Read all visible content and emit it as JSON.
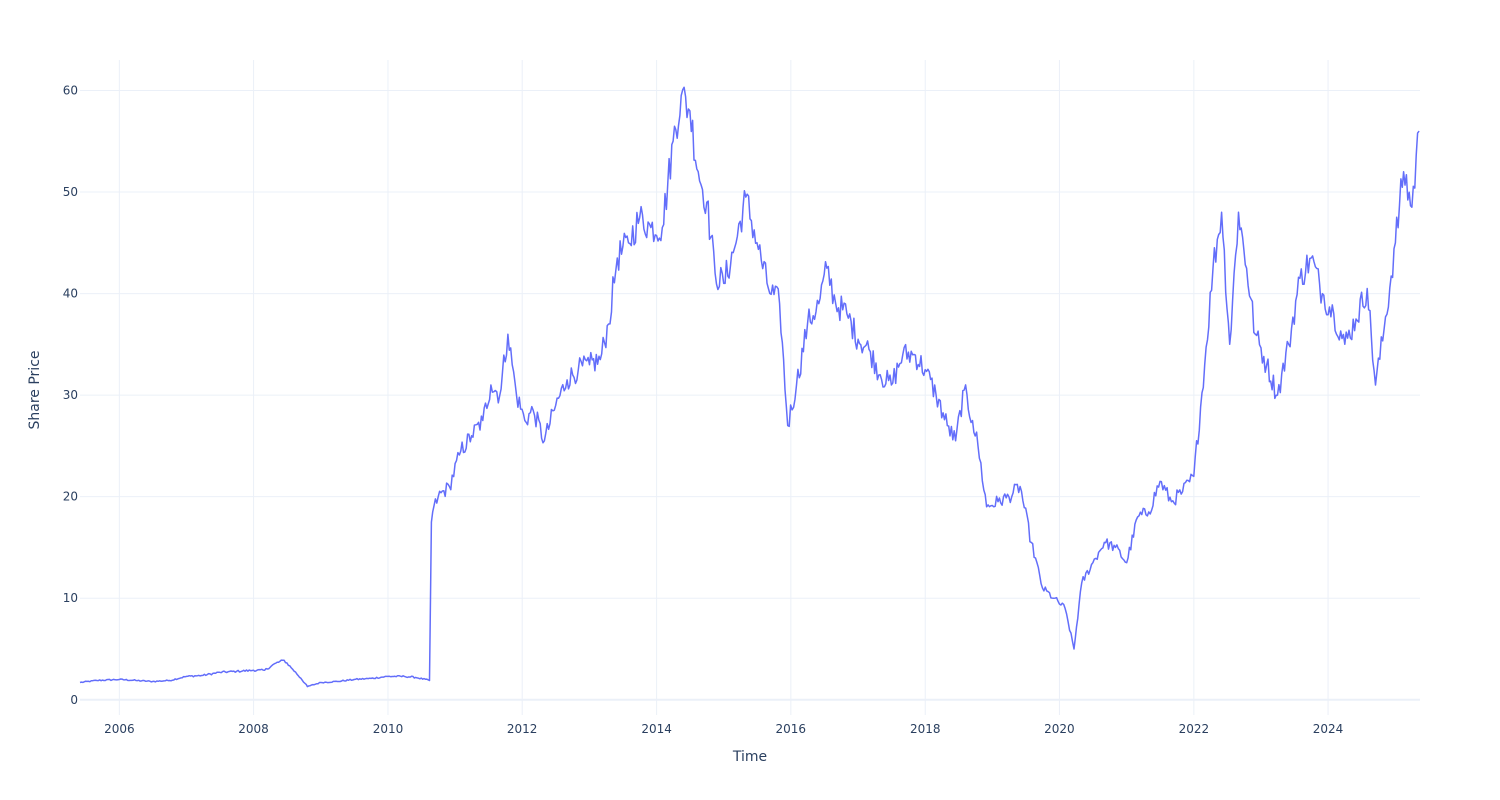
{
  "chart_data": {
    "type": "line",
    "title": "",
    "xlabel": "Time",
    "ylabel": "Share Price",
    "xlim": [
      "2005-06-01",
      "2025-05-15"
    ],
    "ylim": [
      -1.5,
      63
    ],
    "grid": true,
    "x_tick_labels": [
      "2006",
      "2008",
      "2010",
      "2012",
      "2014",
      "2016",
      "2018",
      "2020",
      "2022",
      "2024"
    ],
    "y_tick_labels": [
      "0",
      "10",
      "20",
      "30",
      "40",
      "50",
      "60"
    ],
    "y_ticks": [
      0,
      10,
      20,
      30,
      40,
      50,
      60
    ],
    "line_color": "#636efa",
    "grid_color": "#ebf0f8",
    "series": [
      {
        "x": [
          "2005-06-01",
          "2005-09-01",
          "2006-01-01",
          "2006-04-01",
          "2006-07-01",
          "2006-10-01",
          "2007-01-01",
          "2007-04-01",
          "2007-07-01",
          "2007-10-01",
          "2008-01-01",
          "2008-03-01",
          "2008-05-01",
          "2008-06-15",
          "2008-08-01",
          "2008-09-15",
          "2008-10-20",
          "2009-01-01",
          "2009-04-01",
          "2009-07-01",
          "2009-10-01",
          "2010-01-01",
          "2010-04-01",
          "2010-06-01",
          "2010-08-15",
          "2010-08-25",
          "2010-09-01",
          "2010-10-01",
          "2010-12-01",
          "2011-02-01",
          "2011-04-01",
          "2011-06-01",
          "2011-07-15",
          "2011-09-01",
          "2011-10-15",
          "2011-12-01",
          "2012-01-15",
          "2012-03-01",
          "2012-05-01",
          "2012-07-01",
          "2012-09-01",
          "2012-11-01",
          "2013-01-01",
          "2013-03-01",
          "2013-04-15",
          "2013-06-01",
          "2013-08-01",
          "2013-10-01",
          "2013-12-01",
          "2014-02-01",
          "2014-04-01",
          "2014-05-15",
          "2014-07-01",
          "2014-08-15",
          "2014-10-01",
          "2014-11-15",
          "2015-01-01",
          "2015-03-01",
          "2015-05-01",
          "2015-07-01",
          "2015-09-01",
          "2015-11-01",
          "2015-12-15",
          "2016-02-01",
          "2016-04-01",
          "2016-06-01",
          "2016-07-15",
          "2016-09-01",
          "2016-11-01",
          "2017-01-01",
          "2017-03-01",
          "2017-05-01",
          "2017-07-01",
          "2017-09-01",
          "2017-11-01",
          "2018-01-01",
          "2018-03-01",
          "2018-05-01",
          "2018-06-15",
          "2018-08-01",
          "2018-09-15",
          "2018-10-15",
          "2018-12-01",
          "2019-02-01",
          "2019-04-01",
          "2019-06-01",
          "2019-08-01",
          "2019-10-01",
          "2019-12-01",
          "2020-02-01",
          "2020-03-20",
          "2020-05-01",
          "2020-07-01",
          "2020-09-01",
          "2020-11-01",
          "2021-01-01",
          "2021-03-01",
          "2021-05-01",
          "2021-07-01",
          "2021-09-01",
          "2021-11-01",
          "2022-01-01",
          "2022-03-01",
          "2022-04-15",
          "2022-06-01",
          "2022-07-15",
          "2022-09-01",
          "2022-10-15",
          "2022-12-01",
          "2023-02-01",
          "2023-04-01",
          "2023-06-01",
          "2023-08-01",
          "2023-10-01",
          "2023-12-01",
          "2024-02-01",
          "2024-04-01",
          "2024-06-01",
          "2024-08-01",
          "2024-09-15",
          "2024-11-01",
          "2025-01-01",
          "2025-02-15",
          "2025-04-01",
          "2025-05-10"
        ],
        "y": [
          1.7,
          1.9,
          2.0,
          1.9,
          1.8,
          1.9,
          2.3,
          2.4,
          2.7,
          2.8,
          2.9,
          2.9,
          3.6,
          3.9,
          3.0,
          2.1,
          1.3,
          1.7,
          1.8,
          2.0,
          2.1,
          2.3,
          2.3,
          2.2,
          1.9,
          17.5,
          18.5,
          20.0,
          21.0,
          24.5,
          26.0,
          27.5,
          31.0,
          30.0,
          36.0,
          30.0,
          27.5,
          28.5,
          25.5,
          29.0,
          31.5,
          32.5,
          33.0,
          33.5,
          37.0,
          43.5,
          45.0,
          47.5,
          46.5,
          46.5,
          55.0,
          59.5,
          58.0,
          52.0,
          49.0,
          42.0,
          41.0,
          44.5,
          49.5,
          45.0,
          40.5,
          39.0,
          27.0,
          31.0,
          37.0,
          39.0,
          42.5,
          39.0,
          38.0,
          35.5,
          34.5,
          32.0,
          31.0,
          34.0,
          34.0,
          32.5,
          30.0,
          27.0,
          25.5,
          30.5,
          27.5,
          25.0,
          19.0,
          19.5,
          20.0,
          21.0,
          15.5,
          11.0,
          10.0,
          9.0,
          5.0,
          11.5,
          13.5,
          15.5,
          15.0,
          13.5,
          18.0,
          18.5,
          21.5,
          19.5,
          20.5,
          22.0,
          33.0,
          42.5,
          48.0,
          35.0,
          48.0,
          42.5,
          36.0,
          33.0,
          30.0,
          35.0,
          41.5,
          43.5,
          40.0,
          38.0,
          35.0,
          37.5,
          40.5,
          31.0,
          36.5,
          45.0,
          52.0,
          48.5,
          56.0
        ]
      }
    ]
  }
}
